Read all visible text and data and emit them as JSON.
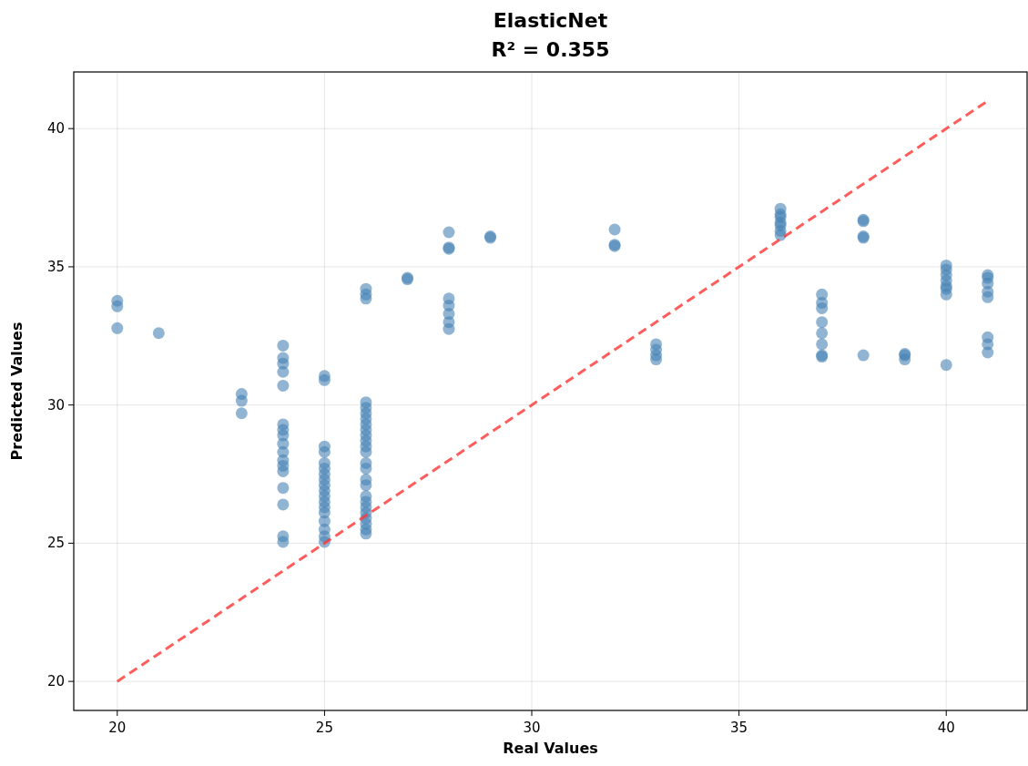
{
  "chart_data": {
    "type": "scatter",
    "title": "ElasticNet",
    "subtitle": "R² = 0.355",
    "xlabel": "Real Values",
    "ylabel": "Predicted Values",
    "xlim": [
      18.95,
      41.95
    ],
    "ylim": [
      18.95,
      42.05
    ],
    "xticks": [
      20,
      25,
      30,
      35,
      40
    ],
    "yticks": [
      20,
      25,
      30,
      35,
      40
    ],
    "grid": true,
    "series": [
      {
        "type": "scatter",
        "marker": "circle",
        "color": "#4682b4",
        "x": [
          20,
          20,
          20,
          21,
          23,
          23,
          23,
          24,
          24,
          24,
          24,
          24,
          24,
          24,
          24,
          24,
          24,
          24,
          24,
          24,
          24,
          24,
          24,
          24,
          25,
          25,
          25,
          25,
          25,
          25,
          25,
          25,
          25,
          25,
          25,
          25,
          25,
          25,
          25,
          25,
          25,
          25,
          26,
          26,
          26,
          26,
          26,
          26,
          26,
          26,
          26,
          26,
          26,
          26,
          26,
          26,
          26,
          26,
          26,
          26,
          26,
          26,
          26,
          26,
          26,
          26,
          26,
          27,
          27,
          28,
          28,
          28,
          28,
          28,
          28,
          28,
          28,
          29,
          29,
          32,
          32,
          32,
          33,
          33,
          33,
          33,
          36,
          36,
          36,
          36,
          36,
          36,
          36,
          37,
          37,
          37,
          37,
          37,
          37,
          37,
          37,
          38,
          38,
          38,
          38,
          38,
          39,
          39,
          39,
          40,
          40,
          40,
          40,
          40,
          40,
          40,
          40,
          41,
          41,
          41,
          41,
          41,
          41,
          41,
          41
        ],
        "values": [
          33.77,
          33.57,
          32.78,
          32.6,
          30.4,
          30.15,
          29.7,
          32.15,
          31.7,
          31.5,
          31.2,
          30.7,
          29.3,
          29.1,
          28.9,
          28.6,
          28.3,
          28.0,
          27.8,
          27.6,
          27.0,
          26.4,
          25.25,
          25.05,
          31.05,
          30.9,
          28.5,
          28.3,
          27.9,
          27.7,
          27.5,
          27.3,
          27.1,
          26.9,
          26.7,
          26.5,
          26.3,
          26.1,
          25.8,
          25.5,
          25.25,
          25.05,
          34.2,
          34.0,
          33.85,
          30.1,
          29.9,
          29.7,
          29.5,
          29.3,
          29.1,
          28.9,
          28.7,
          28.5,
          28.3,
          27.9,
          27.7,
          27.3,
          27.1,
          26.7,
          26.5,
          26.3,
          26.1,
          25.9,
          25.7,
          25.5,
          25.35,
          34.6,
          34.55,
          36.25,
          35.7,
          35.65,
          33.85,
          33.6,
          33.3,
          33.0,
          32.75,
          36.1,
          36.05,
          36.35,
          35.8,
          35.75,
          32.2,
          32.0,
          31.8,
          31.65,
          37.1,
          36.9,
          36.8,
          36.6,
          36.5,
          36.3,
          36.15,
          34.0,
          33.7,
          33.5,
          33.0,
          32.6,
          32.2,
          31.8,
          31.75,
          36.7,
          36.65,
          36.1,
          36.05,
          31.8,
          31.85,
          31.8,
          31.65,
          35.05,
          34.9,
          34.7,
          34.5,
          34.3,
          34.2,
          34.0,
          31.45,
          34.7,
          34.6,
          34.4,
          34.1,
          33.9,
          32.45,
          32.2,
          31.9
        ]
      },
      {
        "type": "line",
        "color": "#ff3333",
        "line_style": "dashed",
        "x": [
          20,
          41
        ],
        "values": [
          20,
          41
        ]
      }
    ]
  }
}
